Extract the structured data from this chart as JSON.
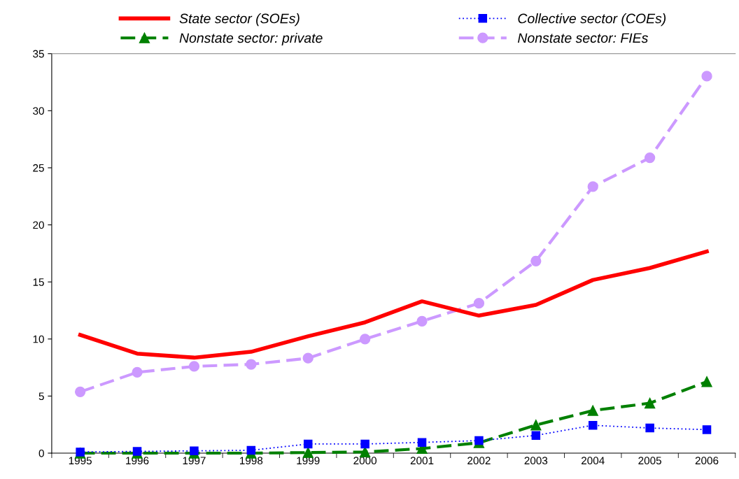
{
  "chart_data": {
    "type": "line",
    "categories": [
      "1995",
      "1996",
      "1997",
      "1998",
      "1999",
      "2000",
      "2001",
      "2002",
      "2003",
      "2004",
      "2005",
      "2006"
    ],
    "ylim": [
      0,
      35
    ],
    "yticks": [
      0,
      5,
      10,
      15,
      20,
      25,
      30,
      35
    ],
    "grid": false,
    "legend": "top",
    "series": [
      {
        "name": "State sector (SOEs)",
        "color": "#ff0000",
        "line_style": "solid",
        "marker": "none",
        "values": [
          10.36,
          8.72,
          8.37,
          8.88,
          10.24,
          11.46,
          13.3,
          12.05,
          12.99,
          15.17,
          16.22,
          17.67
        ]
      },
      {
        "name": "Collective sector (COEs)",
        "color": "#0000ff",
        "line_style": "dotted",
        "marker": "square",
        "values": [
          0.1,
          0.15,
          0.2,
          0.25,
          0.8,
          0.8,
          0.94,
          1.1,
          1.55,
          2.44,
          2.2,
          2.06
        ]
      },
      {
        "name": "Nonstate sector: private",
        "color": "#008000",
        "line_style": "dashed",
        "marker": "triangle",
        "values": [
          0,
          0,
          0,
          0,
          0.05,
          0.1,
          0.4,
          0.91,
          2.46,
          3.73,
          4.38,
          6.26
        ]
      },
      {
        "name": "Nonstate sector: FIEs",
        "color": "#cc99ff",
        "line_style": "dashed",
        "marker": "circle",
        "values": [
          5.37,
          7.08,
          7.6,
          7.78,
          8.32,
          9.99,
          11.56,
          13.13,
          16.83,
          23.35,
          25.88,
          33.03
        ]
      }
    ]
  }
}
